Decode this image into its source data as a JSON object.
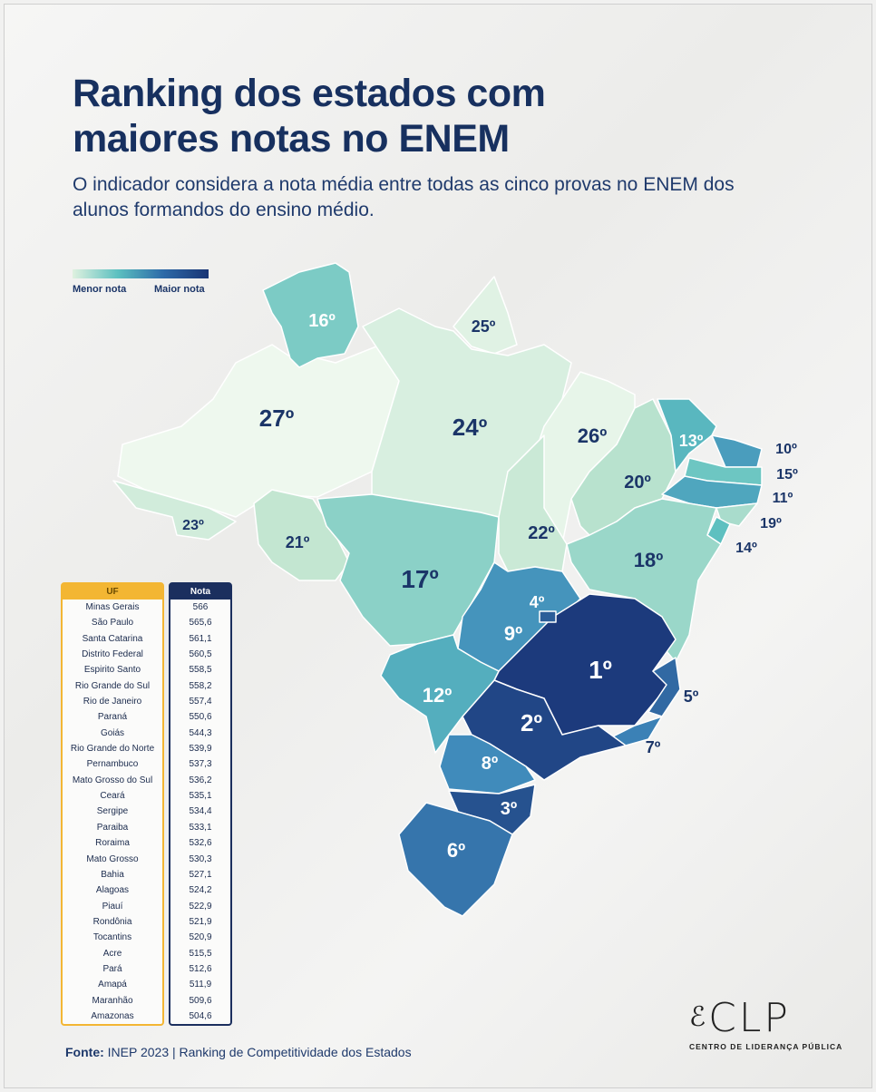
{
  "header": {
    "title_line1": "Ranking dos estados com",
    "title_line2": "maiores notas no ENEM",
    "subtitle": "O indicador considera a nota média entre todas as cinco provas no ENEM dos alunos formandos do ensino médio."
  },
  "legend": {
    "low_label": "Menor nota",
    "high_label": "Maior nota",
    "low_color": "#dff1df",
    "high_color": "#1a3574"
  },
  "map": {
    "states": [
      {
        "uf": "AM",
        "rank": "27º"
      },
      {
        "uf": "RR",
        "rank": "16º"
      },
      {
        "uf": "AP",
        "rank": "25º"
      },
      {
        "uf": "PA",
        "rank": "24º"
      },
      {
        "uf": "AC",
        "rank": "23º"
      },
      {
        "uf": "RO",
        "rank": "21º"
      },
      {
        "uf": "MT",
        "rank": "17º"
      },
      {
        "uf": "MA",
        "rank": "26º"
      },
      {
        "uf": "TO",
        "rank": "22º"
      },
      {
        "uf": "PI",
        "rank": "20º"
      },
      {
        "uf": "CE",
        "rank": "13º"
      },
      {
        "uf": "RN",
        "rank": "10º"
      },
      {
        "uf": "PB",
        "rank": "15º"
      },
      {
        "uf": "PE",
        "rank": "11º"
      },
      {
        "uf": "AL",
        "rank": "19º"
      },
      {
        "uf": "SE",
        "rank": "14º"
      },
      {
        "uf": "BA",
        "rank": "18º"
      },
      {
        "uf": "GO",
        "rank": "9º"
      },
      {
        "uf": "DF",
        "rank": "4º"
      },
      {
        "uf": "MG",
        "rank": "1º"
      },
      {
        "uf": "ES",
        "rank": "5º"
      },
      {
        "uf": "RJ",
        "rank": "7º"
      },
      {
        "uf": "SP",
        "rank": "2º"
      },
      {
        "uf": "MS",
        "rank": "12º"
      },
      {
        "uf": "PR",
        "rank": "8º"
      },
      {
        "uf": "SC",
        "rank": "3º"
      },
      {
        "uf": "RS",
        "rank": "6º"
      }
    ]
  },
  "table": {
    "uf_header": "UF",
    "nota_header": "Nota",
    "rows": [
      {
        "uf": "Minas Gerais",
        "nota": "566"
      },
      {
        "uf": "São Paulo",
        "nota": "565,6"
      },
      {
        "uf": "Santa Catarina",
        "nota": "561,1"
      },
      {
        "uf": "Distrito Federal",
        "nota": "560,5"
      },
      {
        "uf": "Espirito Santo",
        "nota": "558,5"
      },
      {
        "uf": "Rio Grande do Sul",
        "nota": "558,2"
      },
      {
        "uf": "Rio de Janeiro",
        "nota": "557,4"
      },
      {
        "uf": "Paraná",
        "nota": "550,6"
      },
      {
        "uf": "Goiás",
        "nota": "544,3"
      },
      {
        "uf": "Rio Grande do Norte",
        "nota": "539,9"
      },
      {
        "uf": "Pernambuco",
        "nota": "537,3"
      },
      {
        "uf": "Mato Grosso do Sul",
        "nota": "536,2"
      },
      {
        "uf": "Ceará",
        "nota": "535,1"
      },
      {
        "uf": "Sergipe",
        "nota": "534,4"
      },
      {
        "uf": "Paraiba",
        "nota": "533,1"
      },
      {
        "uf": "Roraima",
        "nota": "532,6"
      },
      {
        "uf": "Mato Grosso",
        "nota": "530,3"
      },
      {
        "uf": "Bahia",
        "nota": "527,1"
      },
      {
        "uf": "Alagoas",
        "nota": "524,2"
      },
      {
        "uf": "Piauí",
        "nota": "522,9"
      },
      {
        "uf": "Rondônia",
        "nota": "521,9"
      },
      {
        "uf": "Tocantins",
        "nota": "520,9"
      },
      {
        "uf": "Acre",
        "nota": "515,5"
      },
      {
        "uf": "Pará",
        "nota": "512,6"
      },
      {
        "uf": "Amapá",
        "nota": "511,9"
      },
      {
        "uf": "Maranhão",
        "nota": "509,6"
      },
      {
        "uf": "Amazonas",
        "nota": "504,6"
      }
    ]
  },
  "footer": {
    "source_label": "Fonte:",
    "source_text": "INEP 2023 | Ranking de Competitividade dos Estados",
    "logo_text": "CLP",
    "logo_subtitle": "CENTRO DE LIDERANÇA PÚBLICA"
  }
}
